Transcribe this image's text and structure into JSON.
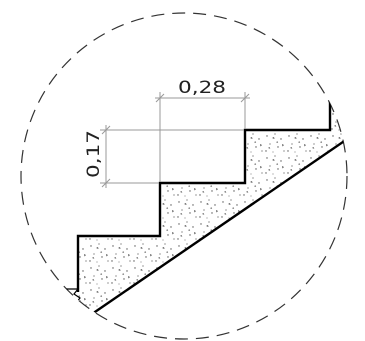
{
  "dimensions": {
    "tread": "0,28",
    "riser": "0,17"
  }
}
